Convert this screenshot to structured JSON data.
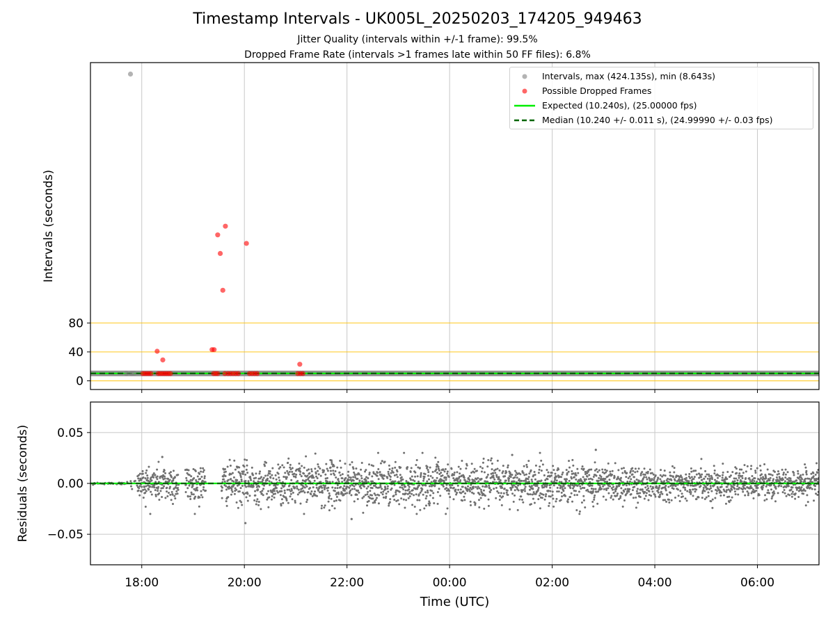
{
  "figure": {
    "title": "Timestamp Intervals - UK005L_20250203_174205_949463",
    "subtitle_1": "Jitter Quality (intervals within +/-1 frame): 99.5%",
    "subtitle_2": "Dropped Frame Rate (intervals >1 frames late within 50 FF files): 6.8%"
  },
  "colors": {
    "intervals": "#808080",
    "dropped": "#ff0000",
    "expected": "#00ee00",
    "median": "#006400",
    "threshold_lines": "#ffc000",
    "grid": "#c8c8c8",
    "residuals": "#707070"
  },
  "legend": {
    "intervals": "Intervals, max (424.135s), min (8.643s)",
    "dropped": "Possible Dropped Frames",
    "expected": "Expected (10.240s), (25.00000 fps)",
    "median": "Median (10.240 +/- 0.011 s), (24.99990 +/- 0.03 fps)"
  },
  "chart_data": [
    {
      "type": "scatter",
      "panel": "intervals",
      "ylabel": "Intervals (seconds)",
      "xlabel": "",
      "x_units": "hours since 00:00 UTC (negative = previous evening)",
      "xlim": [
        -7.0,
        7.2
      ],
      "ylim": [
        -12,
        440
      ],
      "yticks": [
        0,
        40,
        80
      ],
      "threshold_lines": [
        0,
        40,
        80
      ],
      "grid_x": true,
      "legend_position": "upper right",
      "expected_interval": 10.24,
      "median_interval": 10.24,
      "intervals_band": {
        "x_start": -7.0,
        "x_end": 7.2,
        "y": 10.24
      },
      "interval_points": [
        {
          "x": -6.22,
          "y": 424.135
        },
        {
          "x": -6.3,
          "y": 10.24
        },
        {
          "x": -6.2,
          "y": 10.24
        },
        {
          "x": -6.15,
          "y": 10.24
        }
      ],
      "dropped_frames": [
        {
          "x": -5.7,
          "y": 40.9
        },
        {
          "x": -5.59,
          "y": 28.9
        },
        {
          "x": -4.63,
          "y": 43.1
        },
        {
          "x": -4.59,
          "y": 43.1
        },
        {
          "x": -4.52,
          "y": 201.8
        },
        {
          "x": -4.47,
          "y": 176.1
        },
        {
          "x": -4.42,
          "y": 125.2
        },
        {
          "x": -4.37,
          "y": 213.8
        },
        {
          "x": -3.96,
          "y": 190.0
        },
        {
          "x": -2.92,
          "y": 22.9
        },
        {
          "x": -5.98,
          "y": 10.0
        },
        {
          "x": -5.94,
          "y": 10.0
        },
        {
          "x": -5.9,
          "y": 10.0
        },
        {
          "x": -5.86,
          "y": 10.0
        },
        {
          "x": -5.82,
          "y": 10.0
        },
        {
          "x": -5.68,
          "y": 10.0
        },
        {
          "x": -5.64,
          "y": 10.0
        },
        {
          "x": -5.6,
          "y": 10.0
        },
        {
          "x": -5.56,
          "y": 10.0
        },
        {
          "x": -5.52,
          "y": 10.0
        },
        {
          "x": -5.48,
          "y": 10.0
        },
        {
          "x": -5.44,
          "y": 10.0
        },
        {
          "x": -4.6,
          "y": 10.0
        },
        {
          "x": -4.56,
          "y": 10.0
        },
        {
          "x": -4.52,
          "y": 10.0
        },
        {
          "x": -4.38,
          "y": 10.0
        },
        {
          "x": -4.32,
          "y": 10.0
        },
        {
          "x": -4.27,
          "y": 10.0
        },
        {
          "x": -4.22,
          "y": 10.0
        },
        {
          "x": -4.17,
          "y": 10.0
        },
        {
          "x": -4.12,
          "y": 10.0
        },
        {
          "x": -3.9,
          "y": 10.0
        },
        {
          "x": -3.85,
          "y": 10.0
        },
        {
          "x": -3.8,
          "y": 10.0
        },
        {
          "x": -3.75,
          "y": 10.0
        },
        {
          "x": -2.96,
          "y": 10.0
        },
        {
          "x": -2.91,
          "y": 10.0
        },
        {
          "x": -2.86,
          "y": 10.0
        }
      ]
    },
    {
      "type": "scatter",
      "panel": "residuals",
      "ylabel": "Residuals (seconds)",
      "xlabel": "Time (UTC)",
      "xlim": [
        -7.0,
        7.2
      ],
      "ylim": [
        -0.08,
        0.08
      ],
      "yticks": [
        0.05,
        0.0,
        -0.05
      ],
      "ytick_labels": [
        "0.05",
        "0.00",
        "−0.05"
      ],
      "xticks": [
        -6,
        -4,
        -2,
        0,
        2,
        4,
        6
      ],
      "xtick_labels": [
        "18:00",
        "20:00",
        "22:00",
        "00:00",
        "02:00",
        "04:00",
        "06:00"
      ],
      "grid": true,
      "residual_envelope": [
        {
          "x": -6.32,
          "halfwidth": 0.001
        },
        {
          "x": -5.92,
          "halfwidth": 0.018
        },
        {
          "x": -5.2,
          "halfwidth": 0.019
        },
        {
          "x": -4.65,
          "halfwidth": 0.018
        },
        {
          "x": -4.4,
          "halfwidth": 0.019
        },
        {
          "x": -3.0,
          "halfwidth": 0.021
        },
        {
          "x": -1.0,
          "halfwidth": 0.021
        },
        {
          "x": 1.0,
          "halfwidth": 0.02
        },
        {
          "x": 3.0,
          "halfwidth": 0.02
        },
        {
          "x": 4.5,
          "halfwidth": 0.015
        },
        {
          "x": 7.2,
          "halfwidth": 0.015
        }
      ],
      "residual_gaps": [
        [
          -5.28,
          -5.15
        ],
        [
          -4.75,
          -4.45
        ]
      ],
      "residual_outliers": [
        {
          "x": -3.98,
          "y": -0.039
        },
        {
          "x": -1.91,
          "y": -0.035
        },
        {
          "x": 2.85,
          "y": 0.033
        },
        {
          "x": -5.6,
          "y": 0.026
        },
        {
          "x": 1.22,
          "y": 0.028
        }
      ]
    }
  ]
}
